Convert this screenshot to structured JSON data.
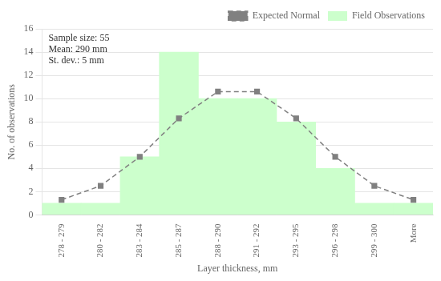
{
  "chart_data": {
    "type": "bar",
    "xlabel": "Layer thickness, mm",
    "ylabel": "No. of observations",
    "annotation": "Sample size: 55\nMean: 290 mm\nSt. dev.: 5 mm",
    "categories": [
      "278 - 279",
      "280 - 282",
      "283 - 284",
      "285 - 287",
      "288 - 290",
      "291 - 292",
      "293 - 295",
      "296 - 298",
      "299 - 300",
      "More"
    ],
    "series": [
      {
        "name": "Field Observations",
        "type": "bar",
        "color": "#ccffcc",
        "values": [
          1,
          1,
          5,
          14,
          10,
          10,
          8,
          4,
          1,
          1
        ]
      },
      {
        "name": "Expected Normal",
        "type": "line",
        "color": "#808080",
        "marker": "square",
        "line_style": "dashed",
        "values": [
          1.3,
          2.5,
          5.0,
          8.3,
          10.6,
          10.6,
          8.3,
          5.0,
          2.5,
          1.3
        ]
      }
    ],
    "ylim": [
      0,
      16
    ],
    "yticks": [
      0,
      2,
      4,
      6,
      8,
      10,
      12,
      14,
      16
    ],
    "grid": true,
    "legend": "upper right"
  }
}
